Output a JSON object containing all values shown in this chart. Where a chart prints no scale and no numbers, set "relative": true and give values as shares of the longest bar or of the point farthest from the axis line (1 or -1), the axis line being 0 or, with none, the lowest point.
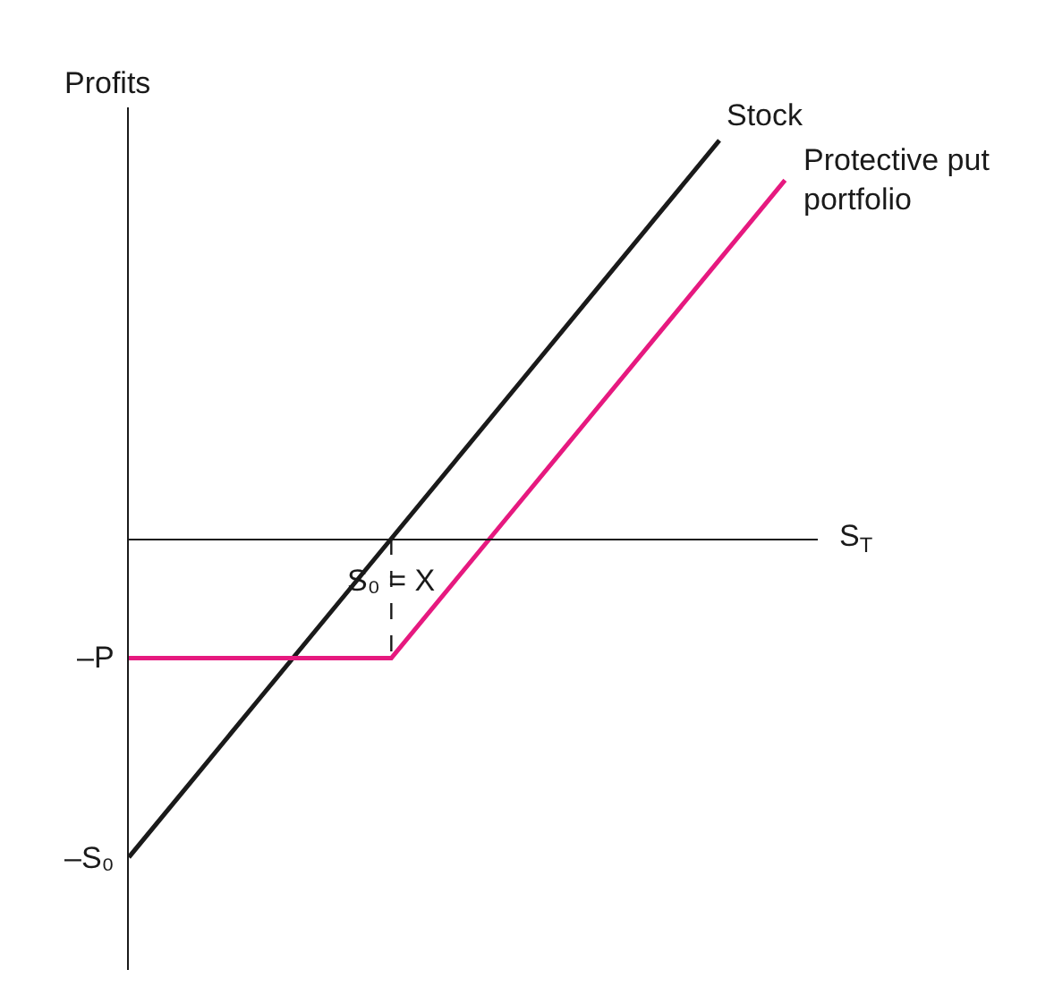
{
  "chart_data": {
    "type": "line",
    "xlabel": "S$_{T}$",
    "ylabel": "Profits",
    "relative": true,
    "categories": [
      null,
      null,
      null,
      null,
      null,
      null,
      null,
      null,
      null,
      null,
      null
    ],
    "series": [
      {
        "name": "Stock",
        "color": "#1a1a1a",
        "values": [
          -0.8,
          -0.6,
          -0.4,
          -0.2,
          0,
          0.2,
          0.4,
          0.6,
          0.8,
          1,
          null
        ]
      },
      {
        "name": "Protective put portfolio",
        "color": "#e6197f",
        "values": [
          -0.3,
          -0.3,
          -0.3,
          -0.3,
          -0.3,
          -0.1,
          0.1,
          0.3,
          0.5,
          0.7,
          0.9
        ]
      }
    ],
    "annotations": [
      "S₀ = X",
      "–P",
      "–S₀"
    ],
    "legend": false,
    "marker": "none",
    "line_style": "solid"
  }
}
